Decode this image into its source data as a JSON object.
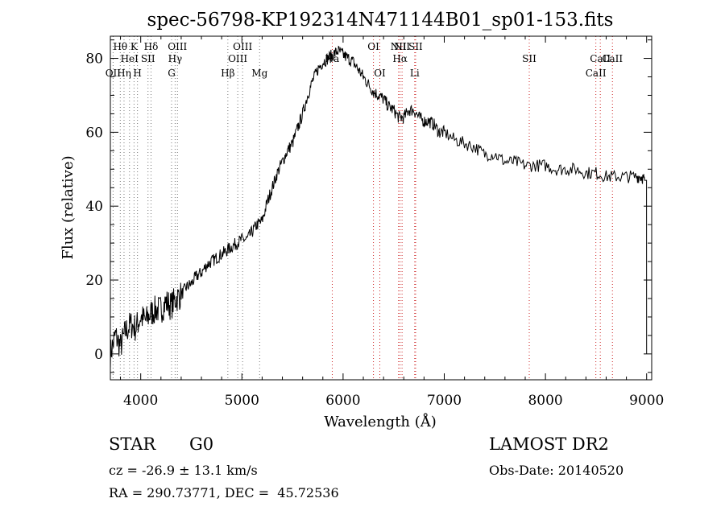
{
  "chart_data": {
    "type": "line",
    "title": "spec-56798-KP192314N471144B01_sp01-153.fits",
    "xlabel": "Wavelength (Å)",
    "ylabel": "Flux (relative)",
    "xlim": [
      3700,
      9050
    ],
    "ylim": [
      -7,
      86
    ],
    "xticks": [
      4000,
      5000,
      6000,
      7000,
      8000,
      9000
    ],
    "yticks": [
      0,
      20,
      40,
      60,
      80
    ],
    "series": [
      {
        "x": [
          3700,
          3750,
          3800,
          3850,
          3900,
          3950,
          4000,
          4050,
          4100,
          4150,
          4200,
          4250,
          4300,
          4350,
          4400,
          4450,
          4500,
          4550,
          4600,
          4650,
          4700,
          4750,
          4800,
          4850,
          4900,
          4950,
          5000,
          5050,
          5100,
          5150,
          5200,
          5250,
          5300,
          5350,
          5400,
          5450,
          5500,
          5550,
          5600,
          5650,
          5700,
          5750,
          5800,
          5850,
          5900,
          5950,
          6000,
          6050,
          6100,
          6150,
          6200,
          6250,
          6300,
          6350,
          6400,
          6450,
          6500,
          6550,
          6600,
          6650,
          6700,
          6750,
          6800,
          6850,
          6900,
          6950,
          7000,
          7100,
          7200,
          7300,
          7400,
          7500,
          7600,
          7700,
          7800,
          7900,
          8000,
          8100,
          8200,
          8300,
          8400,
          8500,
          8600,
          8700,
          8800,
          8900,
          8950,
          8980,
          9000
        ],
        "y": [
          0,
          5,
          2,
          6,
          8,
          7,
          10,
          9,
          11,
          12,
          12,
          14,
          13,
          15,
          16,
          18,
          19,
          21,
          22,
          24,
          25,
          26,
          27,
          28,
          29,
          30,
          31,
          31,
          33,
          35,
          36,
          41,
          45,
          49,
          52,
          55,
          57,
          61,
          65,
          70,
          74,
          77,
          79,
          80,
          81,
          82,
          81,
          80,
          79,
          77,
          75,
          73,
          71,
          70,
          69,
          67,
          66,
          64,
          64,
          66,
          66,
          64,
          63,
          63,
          62,
          60,
          60,
          58,
          57,
          56,
          54,
          54,
          52,
          52,
          51,
          51,
          51,
          50,
          50,
          50,
          49,
          49,
          48,
          48,
          48,
          48,
          48,
          47,
          0
        ]
      }
    ],
    "lines": [
      {
        "label": "OII",
        "wave": 3727,
        "row": 3
      },
      {
        "label": "Hθ",
        "wave": 3798,
        "row": 1
      },
      {
        "label": "Hη",
        "wave": 3835,
        "row": 3
      },
      {
        "label": "HeI",
        "wave": 3889,
        "row": 2
      },
      {
        "label": "K",
        "wave": 3934,
        "row": 1
      },
      {
        "label": "H",
        "wave": 3968,
        "row": 3
      },
      {
        "label": "SII",
        "wave": 4072,
        "row": 2
      },
      {
        "label": "Hδ",
        "wave": 4102,
        "row": 1
      },
      {
        "label": "G",
        "wave": 4305,
        "row": 3
      },
      {
        "label": "Hγ",
        "wave": 4340,
        "row": 2
      },
      {
        "label": "OIII",
        "wave": 4363,
        "row": 1
      },
      {
        "label": "Hβ",
        "wave": 4861,
        "row": 3
      },
      {
        "label": "OIII",
        "wave": 4959,
        "row": 2
      },
      {
        "label": "OIII",
        "wave": 5007,
        "row": 1
      },
      {
        "label": "Mg",
        "wave": 5175,
        "row": 3
      },
      {
        "label": "Na",
        "wave": 5893,
        "row": 2
      },
      {
        "label": "OI",
        "wave": 6300,
        "row": 1
      },
      {
        "label": "OI",
        "wave": 6363,
        "row": 3
      },
      {
        "label": "NII",
        "wave": 6548,
        "row": 1
      },
      {
        "label": "Hα",
        "wave": 6563,
        "row": 2
      },
      {
        "label": "NII",
        "wave": 6583,
        "row": 1
      },
      {
        "label": "Li",
        "wave": 6708,
        "row": 3
      },
      {
        "label": "SII",
        "wave": 6717,
        "row": 1
      },
      {
        "label": "SII",
        "wave": 7840,
        "row": 2
      },
      {
        "label": "CaII",
        "wave": 8498,
        "row": 3
      },
      {
        "label": "CaII",
        "wave": 8542,
        "row": 2
      },
      {
        "label": "CaII",
        "wave": 8662,
        "row": 2
      }
    ]
  },
  "info": {
    "object_class": "STAR",
    "subclass": "G0",
    "survey": "LAMOST DR2",
    "cz": "cz = -26.9 ± 13.1 km/s",
    "obs_date": "Obs-Date: 20140520",
    "radec": "RA = 290.73771, DEC =  45.72536"
  }
}
